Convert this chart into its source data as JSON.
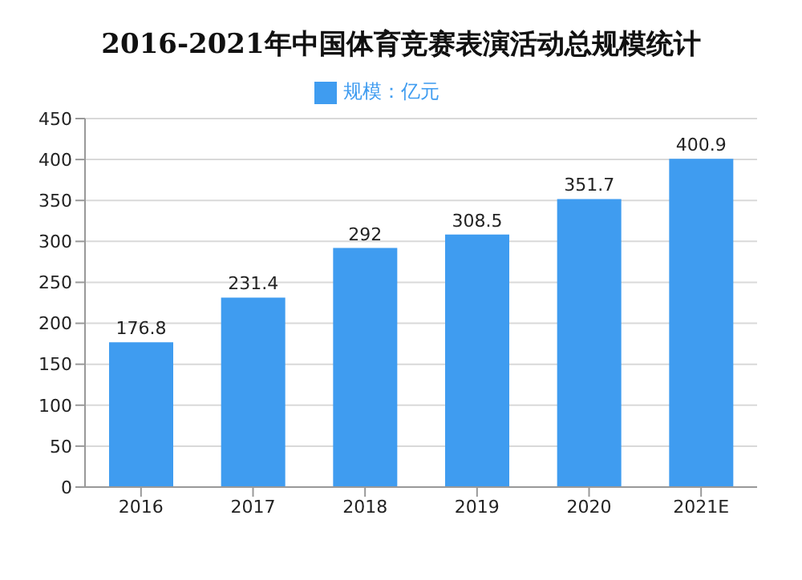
{
  "chart_data": {
    "type": "bar",
    "title": "2016-2021年中国体育竞赛表演活动总规模统计",
    "categories": [
      "2016",
      "2017",
      "2018",
      "2019",
      "2020",
      "2021E"
    ],
    "series": [
      {
        "name": "规模：亿元",
        "color": "#3f9cf0",
        "values": [
          176.8,
          231.4,
          292,
          308.5,
          351.7,
          400.9
        ]
      }
    ],
    "ylim": [
      0,
      450
    ],
    "yticks": [
      0,
      50,
      100,
      150,
      200,
      250,
      300,
      350,
      400,
      450
    ],
    "grid": "y",
    "legend": "top",
    "data_labels": true
  }
}
